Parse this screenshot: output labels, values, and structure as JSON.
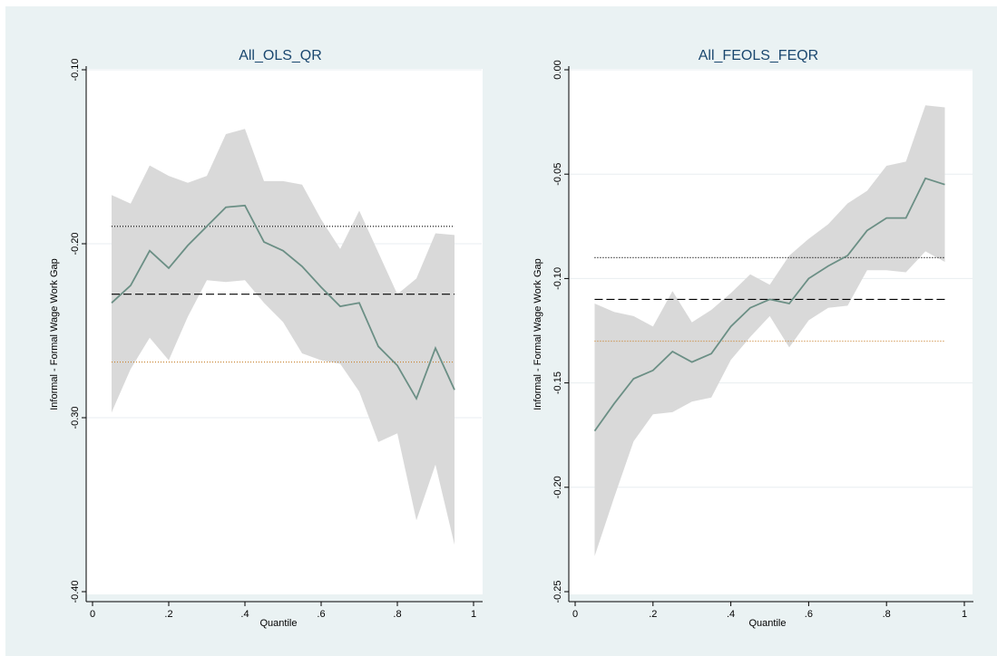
{
  "colors": {
    "figure_background": "#eaf2f3",
    "plot_background": "#ffffff",
    "band": "#d9d9d9",
    "line": "#6b8f85",
    "title": "#1a476f",
    "grid": "#e8eef0",
    "ci_lower_line": "#c8822e"
  },
  "chart_data": [
    {
      "type": "line",
      "title": "All_OLS_QR",
      "xlabel": "Quantile",
      "ylabel": "Informal - Formal Wage Work Gap",
      "xlim": [
        0,
        1
      ],
      "ylim": [
        -0.4,
        -0.1
      ],
      "xticks": [
        0,
        0.2,
        0.4,
        0.6,
        0.8,
        1
      ],
      "xtick_labels": [
        "0",
        ".2",
        ".4",
        ".6",
        ".8",
        "1"
      ],
      "yticks": [
        -0.4,
        -0.3,
        -0.2,
        -0.1
      ],
      "ytick_labels": [
        "-0.40",
        "-0.30",
        "-0.20",
        "-0.10"
      ],
      "grid": true,
      "x": [
        0.05,
        0.1,
        0.15,
        0.2,
        0.25,
        0.3,
        0.35,
        0.4,
        0.45,
        0.5,
        0.55,
        0.6,
        0.65,
        0.7,
        0.75,
        0.8,
        0.85,
        0.9,
        0.95
      ],
      "series": [
        {
          "role": "estimate",
          "values": [
            -0.234,
            -0.224,
            -0.204,
            -0.214,
            -0.201,
            -0.19,
            -0.179,
            -0.178,
            -0.199,
            -0.204,
            -0.213,
            -0.225,
            -0.236,
            -0.234,
            -0.259,
            -0.27,
            -0.289,
            -0.26,
            -0.284
          ]
        },
        {
          "role": "ci_upper",
          "values": [
            -0.172,
            -0.177,
            -0.155,
            -0.161,
            -0.165,
            -0.161,
            -0.137,
            -0.134,
            -0.164,
            -0.164,
            -0.166,
            -0.186,
            -0.203,
            -0.181,
            -0.205,
            -0.229,
            -0.22,
            -0.194,
            -0.195
          ]
        },
        {
          "role": "ci_lower",
          "values": [
            -0.297,
            -0.272,
            -0.254,
            -0.267,
            -0.242,
            -0.221,
            -0.222,
            -0.221,
            -0.234,
            -0.245,
            -0.263,
            -0.267,
            -0.269,
            -0.285,
            -0.314,
            -0.309,
            -0.359,
            -0.327,
            -0.373
          ]
        }
      ],
      "reference_lines": [
        {
          "role": "ols_estimate",
          "style": "dashed",
          "y": -0.229
        },
        {
          "role": "ols_ci_upper",
          "style": "dotted",
          "y": -0.19
        },
        {
          "role": "ols_ci_lower",
          "style": "dotted",
          "y": -0.268
        }
      ]
    },
    {
      "type": "line",
      "title": "All_FEOLS_FEQR",
      "xlabel": "Quantile",
      "ylabel": "Informal - Formal Wage Work Gap",
      "xlim": [
        0,
        1
      ],
      "ylim": [
        -0.25,
        0.0
      ],
      "xticks": [
        0,
        0.2,
        0.4,
        0.6,
        0.8,
        1
      ],
      "xtick_labels": [
        "0",
        ".2",
        ".4",
        ".6",
        ".8",
        "1"
      ],
      "yticks": [
        -0.25,
        -0.2,
        -0.15,
        -0.1,
        -0.05,
        0
      ],
      "ytick_labels": [
        "-0.25",
        "-0.20",
        "-0.15",
        "-0.10",
        "-0.05",
        "0.00"
      ],
      "grid": true,
      "x": [
        0.05,
        0.1,
        0.15,
        0.2,
        0.25,
        0.3,
        0.35,
        0.4,
        0.45,
        0.5,
        0.55,
        0.6,
        0.65,
        0.7,
        0.75,
        0.8,
        0.85,
        0.9,
        0.95
      ],
      "series": [
        {
          "role": "estimate",
          "values": [
            -0.173,
            -0.16,
            -0.148,
            -0.144,
            -0.135,
            -0.14,
            -0.136,
            -0.123,
            -0.114,
            -0.11,
            -0.112,
            -0.1,
            -0.094,
            -0.089,
            -0.077,
            -0.071,
            -0.071,
            -0.052,
            -0.055
          ]
        },
        {
          "role": "ci_upper",
          "values": [
            -0.112,
            -0.116,
            -0.118,
            -0.123,
            -0.106,
            -0.121,
            -0.115,
            -0.107,
            -0.098,
            -0.103,
            -0.089,
            -0.081,
            -0.074,
            -0.064,
            -0.058,
            -0.046,
            -0.044,
            -0.017,
            -0.018
          ]
        },
        {
          "role": "ci_lower",
          "values": [
            -0.233,
            -0.205,
            -0.178,
            -0.165,
            -0.164,
            -0.159,
            -0.157,
            -0.139,
            -0.128,
            -0.118,
            -0.133,
            -0.12,
            -0.114,
            -0.113,
            -0.096,
            -0.096,
            -0.097,
            -0.087,
            -0.092
          ]
        }
      ],
      "reference_lines": [
        {
          "role": "ols_estimate",
          "style": "dashed",
          "y": -0.11
        },
        {
          "role": "ols_ci_upper",
          "style": "dotted",
          "y": -0.09
        },
        {
          "role": "ols_ci_lower",
          "style": "dotted",
          "y": -0.13
        }
      ]
    }
  ]
}
